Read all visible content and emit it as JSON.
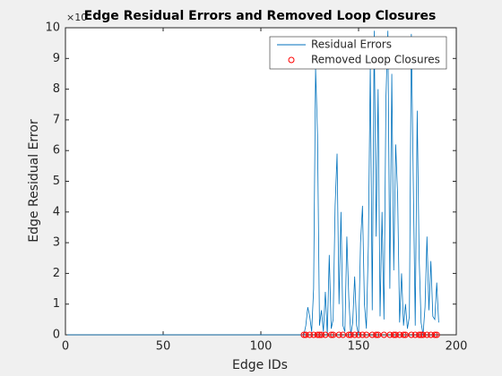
{
  "chart_data": {
    "type": "line",
    "title": "Edge Residual Errors and Removed Loop Closures",
    "x_label": "Edge IDs",
    "y_label": "Edge Residual Error",
    "y_exponent": "×10",
    "xlim": [
      0,
      200
    ],
    "xticks": [
      0,
      50,
      100,
      150,
      200
    ],
    "ylim": [
      0,
      10
    ],
    "yticks": [
      0,
      1,
      2,
      3,
      4,
      5,
      6,
      7,
      8,
      9,
      10
    ],
    "legend": "upper right",
    "series": [
      {
        "name": "Residual Errors",
        "color": "#0072bd",
        "marker": "none",
        "x": [
          1,
          121,
          122,
          123,
          124,
          125,
          126,
          127,
          128,
          129,
          130,
          131,
          132,
          133,
          134,
          135,
          136,
          137,
          138,
          139,
          140,
          141,
          142,
          143,
          144,
          145,
          146,
          147,
          148,
          149,
          150,
          151,
          152,
          153,
          154,
          155,
          156,
          157,
          158,
          159,
          160,
          161,
          162,
          163,
          164,
          165,
          166,
          167,
          168,
          169,
          170,
          171,
          172,
          173,
          174,
          175,
          176,
          177,
          178,
          179,
          180,
          181,
          182,
          183,
          184,
          185,
          186,
          187,
          188,
          189,
          190,
          191
        ],
        "values": [
          0,
          0,
          0,
          0.3,
          0.9,
          0.6,
          0.1,
          1.5,
          8.7,
          6.5,
          0.3,
          0.8,
          0.1,
          1.4,
          0,
          2.6,
          0.2,
          0.5,
          4.2,
          5.9,
          1.0,
          4.0,
          0.3,
          0.1,
          3.2,
          1.2,
          0,
          0.4,
          1.9,
          0.3,
          0,
          3.0,
          4.2,
          1.0,
          0.2,
          2.9,
          8.8,
          0.8,
          9.9,
          3.2,
          8.0,
          0.6,
          4.0,
          0.5,
          7.7,
          9.9,
          1.5,
          8.5,
          2.1,
          6.2,
          4.5,
          0.4,
          2.0,
          0.3,
          1.0,
          0.2,
          0.6,
          9.8,
          5.0,
          0.3,
          7.3,
          2.5,
          0.4,
          0,
          0.9,
          3.2,
          0.8,
          2.4,
          0.6,
          0.5,
          1.7,
          0.4
        ]
      },
      {
        "name": "Removed Loop Closures",
        "color": "#ff0000",
        "marker": "circle",
        "x": [
          122,
          123,
          125,
          127,
          129,
          130,
          131,
          133,
          136,
          137,
          140,
          142,
          145,
          146,
          148,
          150,
          152,
          154,
          157,
          159,
          160,
          163,
          166,
          168,
          169,
          171,
          173,
          174,
          177,
          179,
          181,
          182,
          183,
          185,
          187,
          189,
          190
        ],
        "values": [
          0,
          0,
          0,
          0,
          0,
          0,
          0,
          0,
          0,
          0,
          0,
          0,
          0,
          0,
          0,
          0,
          0,
          0,
          0,
          0,
          0,
          0,
          0,
          0,
          0,
          0,
          0,
          0,
          0,
          0,
          0,
          0,
          0,
          0,
          0,
          0,
          0
        ]
      }
    ]
  }
}
